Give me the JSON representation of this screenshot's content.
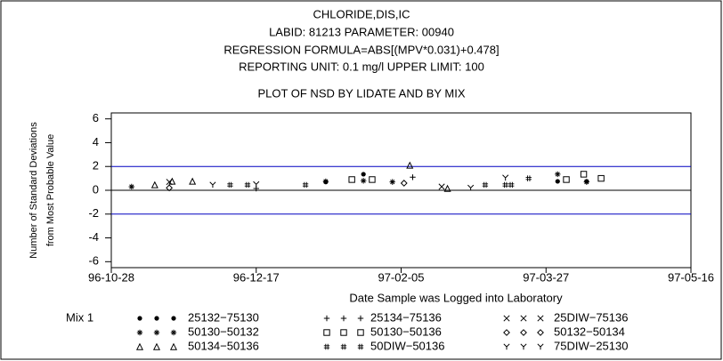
{
  "chart_data": {
    "type": "scatter",
    "title_lines": [
      "CHLORIDE,DIS,IC",
      "LABID: 81213 PARAMETER: 00940",
      "REGRESSION FORMULA=ABS[(MPV*0.031)+0.478]",
      "REPORTING UNIT: 0.1 mg/l   UPPER LIMIT: 100"
    ],
    "subtitle": "PLOT OF NSD BY LIDATE AND BY MIX",
    "y_label_lines": [
      "Number of Standard Deviations",
      "from Most Probable Value"
    ],
    "x_label": "Date Sample was Logged into Laboratory",
    "legend_title": "Mix 1",
    "xlim": [
      "96-10-28",
      "97-05-16"
    ],
    "xticks": [
      "96-10-28",
      "96-12-17",
      "97-02-05",
      "97-03-27",
      "97-05-16"
    ],
    "ylim": [
      -6.5,
      6.5
    ],
    "yticks": [
      -6,
      -4,
      -2,
      0,
      2,
      4,
      6
    ],
    "reference_lines": [
      {
        "value": 2,
        "color": "#0000c0"
      },
      {
        "value": 0,
        "color": "#000000"
      },
      {
        "value": -2,
        "color": "#0000c0"
      }
    ],
    "series": [
      {
        "name": "25132−75130",
        "marker": "dot",
        "color": "#000000",
        "x": [
          "97-01-10",
          "97-01-23",
          "97-03-31",
          "97-04-10"
        ],
        "values": [
          0.7,
          1.35,
          0.75,
          0.75
        ]
      },
      {
        "name": "25134−75136",
        "marker": "plus",
        "color": "#000000",
        "x": [
          "96-12-17",
          "97-02-09"
        ],
        "values": [
          0.15,
          1.1
        ]
      },
      {
        "name": "25DIW−75136",
        "marker": "cross",
        "color": "#000000",
        "x": [
          "96-11-17",
          "97-02-19"
        ],
        "values": [
          0.7,
          0.3
        ]
      },
      {
        "name": "50130−50132",
        "marker": "star",
        "color": "#000000",
        "x": [
          "96-11-04",
          "97-01-10",
          "97-01-23",
          "97-02-02",
          "97-03-31",
          "97-04-10"
        ],
        "values": [
          0.3,
          0.75,
          0.8,
          0.7,
          1.35,
          0.7
        ]
      },
      {
        "name": "50130−50136",
        "marker": "square",
        "color": "#000000",
        "x": [
          "97-01-19",
          "97-01-26",
          "97-04-03",
          "97-04-09",
          "97-04-15"
        ],
        "values": [
          0.9,
          0.9,
          0.9,
          1.35,
          1.0
        ]
      },
      {
        "name": "50132−50134",
        "marker": "diamond",
        "color": "#000000",
        "x": [
          "96-11-17",
          "97-02-06"
        ],
        "values": [
          0.2,
          0.6
        ]
      },
      {
        "name": "50134−50136",
        "marker": "triangle",
        "color": "#000000",
        "x": [
          "96-11-12",
          "96-11-18",
          "96-11-25",
          "97-02-08",
          "97-02-21"
        ],
        "values": [
          0.45,
          0.75,
          0.75,
          2.1,
          0.15
        ]
      },
      {
        "name": "50DIW−50136",
        "marker": "hash",
        "color": "#000000",
        "x": [
          "96-12-08",
          "96-12-14",
          "97-01-03",
          "97-03-06",
          "97-03-13",
          "97-03-15",
          "97-03-21"
        ],
        "values": [
          0.45,
          0.45,
          0.45,
          0.45,
          0.45,
          0.45,
          1.0
        ]
      },
      {
        "name": "75DIW−25130",
        "marker": "y",
        "color": "#000000",
        "x": [
          "96-12-02",
          "96-12-17",
          "97-03-01",
          "97-03-13"
        ],
        "values": [
          0.45,
          0.5,
          0.2,
          1.05
        ]
      }
    ]
  }
}
